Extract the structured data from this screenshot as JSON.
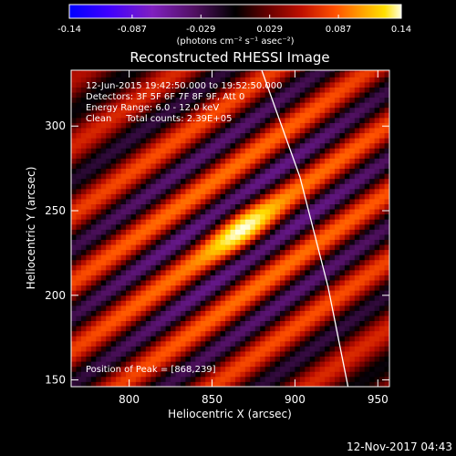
{
  "chart_data": {
    "type": "heatmap",
    "title": "Reconstructed RHESSI Image",
    "xlabel": "Heliocentric X (arcsec)",
    "ylabel": "Heliocentric Y (arcsec)",
    "xlim": [
      765,
      957
    ],
    "ylim": [
      146,
      333
    ],
    "x_ticks": [
      800,
      850,
      900,
      950
    ],
    "y_ticks": [
      150,
      200,
      250,
      300
    ],
    "colorbar": {
      "label": "(photons cm⁻² s⁻¹ asec⁻²)",
      "range": [
        -0.14,
        0.14
      ],
      "tick_values": [
        -0.14,
        -0.087,
        -0.029,
        0.029,
        0.087,
        0.14
      ],
      "tick_labels": [
        "-0.14",
        "-0.087",
        "-0.029",
        "0.029",
        "0.087",
        "0.14"
      ]
    },
    "annotations": [
      "12-Jun-2015 19:42:50.000 to 19:52:50.000",
      "Detectors: 3F 5F 6F 7F 8F 9F, Att 0",
      "Energy Range: 6.0 - 12.0 keV",
      "Clean     Total counts: 2.39E+05"
    ],
    "peak_label": "Position of Peak = [868,239]",
    "peak": [
      868,
      239
    ],
    "limb_curve": {
      "x": [
        880,
        903,
        920,
        932
      ],
      "y": [
        333,
        270,
        205,
        146
      ]
    },
    "pattern": {
      "angle_deg": 35,
      "wavelength_arcsec": 33,
      "envelope_sigma_arcsec": 140
    },
    "colors": {
      "background": "#000000",
      "foreground": "#ffffff",
      "colormap": [
        "#0000ff",
        "#4000ff",
        "#8020c0",
        "#501060",
        "#000000",
        "#680000",
        "#c01000",
        "#ff5000",
        "#ffa000",
        "#ffe000",
        "#ffffe0"
      ]
    }
  },
  "footer": {
    "timestamp": "12-Nov-2017 04:43"
  }
}
